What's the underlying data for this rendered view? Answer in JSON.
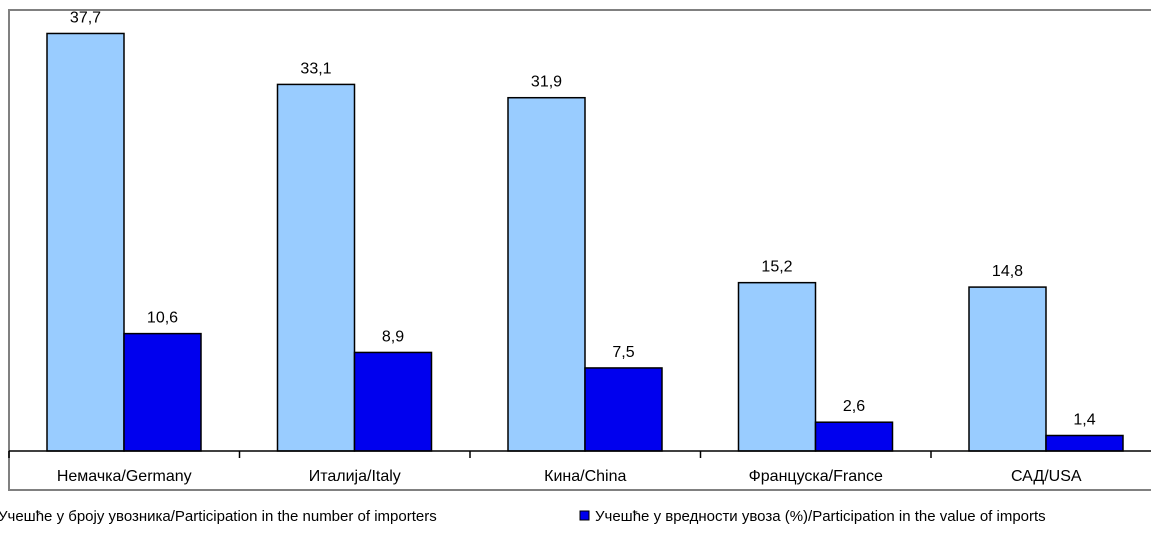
{
  "chart_data": {
    "type": "bar",
    "categories": [
      "Немачка/Germany",
      "Италија/Italy",
      "Кина/China",
      "Француска/France",
      "САД/USA"
    ],
    "series": [
      {
        "name": "Учешће у броју увозника/Participation in the number of importers",
        "color": "#99ccff",
        "values": [
          37.7,
          33.1,
          31.9,
          15.2,
          14.8
        ],
        "labels": [
          "37,7",
          "33,1",
          "31,9",
          "15,2",
          "14,8"
        ]
      },
      {
        "name": "Учешће у вредности увоза (%)/Participation in the value of imports",
        "color": "#0000ee",
        "values": [
          10.6,
          8.9,
          7.5,
          2.6,
          1.4
        ],
        "labels": [
          "10,6",
          "8,9",
          "7,5",
          "2,6",
          "1,4"
        ]
      }
    ],
    "ylim": [
      0,
      40
    ],
    "grid": false,
    "legend": "bottom"
  }
}
